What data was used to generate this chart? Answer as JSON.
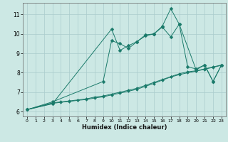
{
  "title": "",
  "xlabel": "Humidex (Indice chaleur)",
  "bg_color": "#cce8e4",
  "grid_color": "#aacccc",
  "line_color": "#1a7a6a",
  "xlim": [
    -0.5,
    23.5
  ],
  "ylim": [
    5.75,
    11.6
  ],
  "xticks": [
    0,
    1,
    2,
    3,
    4,
    5,
    6,
    7,
    8,
    9,
    10,
    11,
    12,
    13,
    14,
    15,
    16,
    17,
    18,
    19,
    20,
    21,
    22,
    23
  ],
  "yticks": [
    6,
    7,
    8,
    9,
    10,
    11
  ],
  "series": [
    {
      "x": [
        0,
        3,
        10,
        11,
        12,
        13,
        14,
        15,
        16,
        17,
        18,
        20,
        21,
        22,
        23
      ],
      "y": [
        6.1,
        6.4,
        10.25,
        9.15,
        9.4,
        9.6,
        9.9,
        10.0,
        10.4,
        11.3,
        10.5,
        8.15,
        8.4,
        7.55,
        8.4
      ],
      "markersize": 2.5
    },
    {
      "x": [
        0,
        3,
        9,
        10,
        11,
        12,
        13,
        14,
        15,
        16,
        17,
        18,
        19,
        20,
        21,
        22,
        23
      ],
      "y": [
        6.1,
        6.5,
        7.55,
        9.65,
        9.5,
        9.25,
        9.6,
        9.95,
        10.0,
        10.35,
        9.85,
        10.5,
        8.3,
        8.2,
        8.4,
        7.55,
        8.4
      ],
      "markersize": 2.5
    },
    {
      "x": [
        0,
        3,
        4,
        5,
        6,
        7,
        8,
        9,
        10,
        11,
        12,
        13,
        14,
        15,
        16,
        17,
        18,
        19,
        20,
        21,
        22,
        23
      ],
      "y": [
        6.1,
        6.45,
        6.5,
        6.55,
        6.6,
        6.65,
        6.75,
        6.8,
        6.9,
        7.0,
        7.1,
        7.2,
        7.35,
        7.5,
        7.65,
        7.8,
        7.95,
        8.05,
        8.1,
        8.2,
        8.3,
        8.4
      ],
      "markersize": 2.0
    },
    {
      "x": [
        0,
        3,
        4,
        5,
        6,
        7,
        8,
        9,
        10,
        11,
        12,
        13,
        14,
        15,
        16,
        17,
        18,
        19,
        20,
        21,
        22,
        23
      ],
      "y": [
        6.1,
        6.42,
        6.48,
        6.52,
        6.58,
        6.62,
        6.7,
        6.76,
        6.86,
        6.95,
        7.05,
        7.15,
        7.3,
        7.45,
        7.62,
        7.78,
        7.9,
        8.0,
        8.08,
        8.18,
        8.28,
        8.38
      ],
      "markersize": 2.0
    }
  ]
}
